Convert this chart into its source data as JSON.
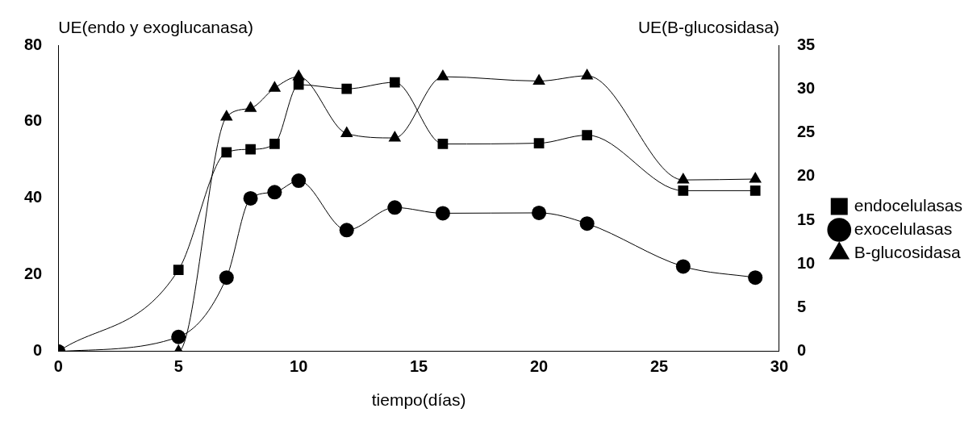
{
  "chart_data": {
    "type": "line",
    "xlabel": "tiempo(días)",
    "ylabel": "UE(endo y exoglucanasa)",
    "y2label": "UE(B-glucosidasa)",
    "x": [
      0,
      5,
      7,
      8,
      9,
      10,
      12,
      14,
      16,
      20,
      22,
      26,
      29
    ],
    "xlim": [
      0,
      30
    ],
    "xticks": [
      0,
      5,
      10,
      15,
      20,
      25,
      30
    ],
    "ylim": [
      0,
      80
    ],
    "yticks": [
      0,
      20,
      40,
      60,
      80
    ],
    "y2lim": [
      0,
      35
    ],
    "y2ticks": [
      0,
      5,
      10,
      15,
      20,
      25,
      30,
      35
    ],
    "series": [
      {
        "name": "endocelulasas",
        "color": "#000000",
        "marker": "square",
        "values": [
          0,
          21.3,
          52,
          52.8,
          54.2,
          69.7,
          68.6,
          70.3,
          54.2,
          54.4,
          56.5,
          42,
          42
        ]
      },
      {
        "name": "exocelulasas",
        "color": "#000000",
        "marker": "circle",
        "values": [
          0,
          3.8,
          19.3,
          40,
          41.6,
          44.6,
          31.7,
          37.6,
          36.1,
          36.2,
          33.4,
          22.2,
          19.3
        ]
      },
      {
        "name": "B-glucosidasa",
        "color": "#000000",
        "marker": "triangle",
        "axis": "y2",
        "values": [
          0,
          0,
          26.8,
          27.8,
          30.1,
          31.4,
          24.9,
          24.4,
          31.4,
          30.9,
          31.5,
          19.6,
          19.7
        ]
      }
    ],
    "grid": false,
    "legend": "right"
  }
}
